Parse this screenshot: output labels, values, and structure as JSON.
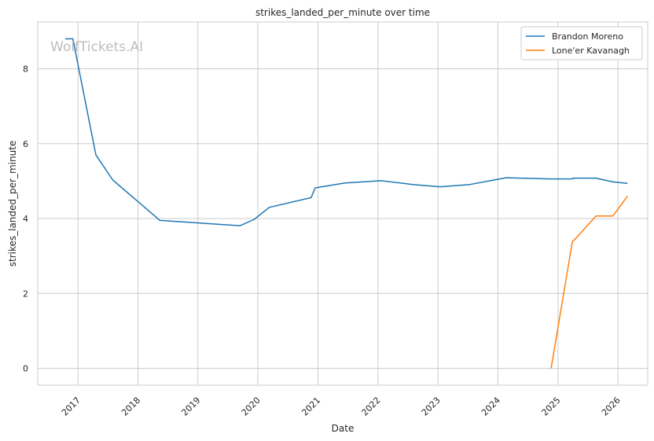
{
  "watermark": "WolfTickets.AI",
  "chart_data": {
    "type": "line",
    "title": "strikes_landed_per_minute over time",
    "xlabel": "Date",
    "ylabel": "strikes_landed_per_minute",
    "x_ticks": [
      "2017",
      "2018",
      "2019",
      "2020",
      "2021",
      "2022",
      "2023",
      "2024",
      "2025",
      "2026"
    ],
    "y_ticks": [
      0,
      2,
      4,
      6,
      8
    ],
    "xlim": [
      "2016-05-01",
      "2026-07-01"
    ],
    "ylim": [
      -0.45,
      9.25
    ],
    "grid": true,
    "legend_position": "top-right",
    "series": [
      {
        "name": "Brandon Moreno",
        "color": "#1f77b4",
        "points": [
          [
            "2016-10-15",
            8.8
          ],
          [
            "2016-12-01",
            8.8
          ],
          [
            "2017-04-20",
            5.7
          ],
          [
            "2017-08-01",
            5.03
          ],
          [
            "2018-05-15",
            3.95
          ],
          [
            "2019-09-15",
            3.81
          ],
          [
            "2019-12-10",
            3.98
          ],
          [
            "2020-03-10",
            4.3
          ],
          [
            "2020-11-20",
            4.56
          ],
          [
            "2020-12-15",
            4.82
          ],
          [
            "2021-06-15",
            4.95
          ],
          [
            "2022-01-20",
            5.01
          ],
          [
            "2022-08-01",
            4.91
          ],
          [
            "2023-01-15",
            4.85
          ],
          [
            "2023-07-15",
            4.91
          ],
          [
            "2024-02-20",
            5.09
          ],
          [
            "2024-11-15",
            5.06
          ],
          [
            "2025-03-29",
            5.06
          ],
          [
            "2025-04-01",
            5.08
          ],
          [
            "2025-08-20",
            5.08
          ],
          [
            "2025-12-01",
            4.98
          ],
          [
            "2026-02-28",
            4.94
          ]
        ]
      },
      {
        "name": "Lone'er Kavanagh",
        "color": "#ff7f0e",
        "points": [
          [
            "2024-11-20",
            0.0
          ],
          [
            "2025-03-29",
            3.38
          ],
          [
            "2025-04-15",
            3.45
          ],
          [
            "2025-08-20",
            4.07
          ],
          [
            "2025-12-01",
            4.07
          ],
          [
            "2026-02-28",
            4.6
          ]
        ]
      }
    ]
  }
}
